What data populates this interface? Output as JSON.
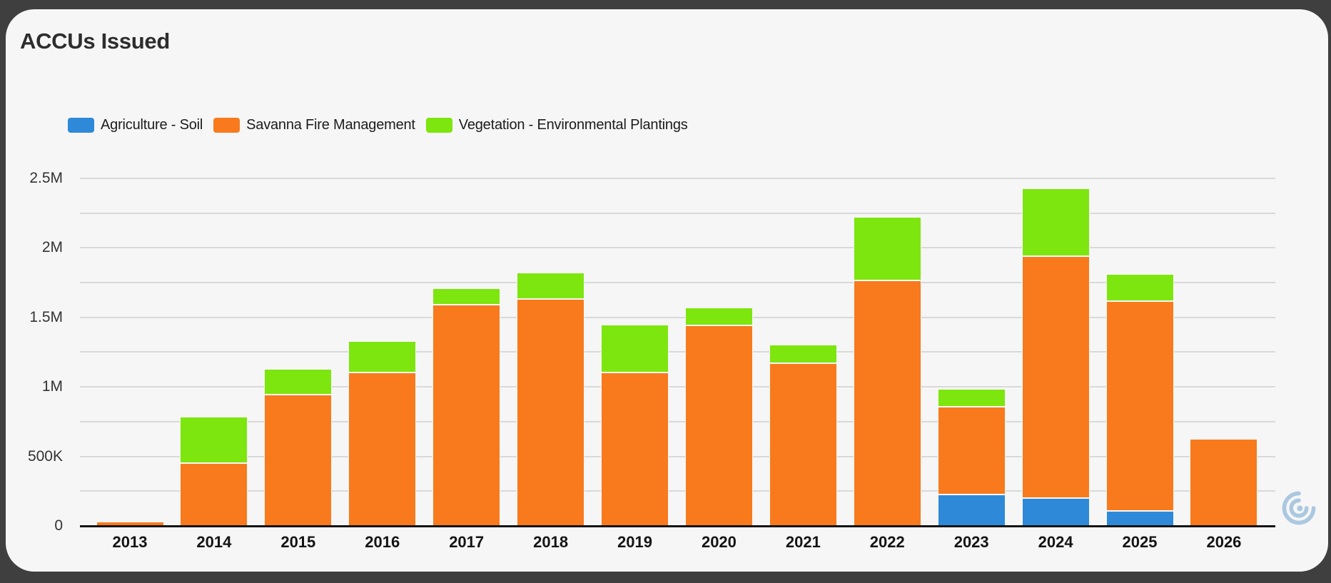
{
  "header": {
    "title": "ACCUs Issued"
  },
  "chart_data": {
    "type": "bar",
    "stacked": true,
    "title": "ACCUs Issued",
    "legend_position": "top",
    "grid": true,
    "categories": [
      "2013",
      "2014",
      "2015",
      "2016",
      "2017",
      "2018",
      "2019",
      "2020",
      "2021",
      "2022",
      "2023",
      "2024",
      "2025",
      "2026"
    ],
    "series": [
      {
        "name": "Agriculture - Soil",
        "color": "#2e89d8",
        "values": [
          0,
          0,
          0,
          0,
          0,
          0,
          0,
          0,
          0,
          0,
          225000,
          200000,
          110000,
          0
        ]
      },
      {
        "name": "Savanna Fire Management",
        "color": "#f87a1c",
        "values": [
          30000,
          450000,
          945000,
          1105000,
          1590000,
          1630000,
          1105000,
          1440000,
          1170000,
          1765000,
          630000,
          1740000,
          1505000,
          625000
        ]
      },
      {
        "name": "Vegetation - Environmental Plantings",
        "color": "#7de60e",
        "values": [
          0,
          335000,
          185000,
          225000,
          120000,
          190000,
          340000,
          130000,
          135000,
          455000,
          130000,
          485000,
          195000,
          0
        ]
      }
    ],
    "xlabel": "",
    "ylabel": "",
    "ylim": [
      0,
      2500000
    ],
    "y_ticks": [
      {
        "value": 0,
        "label": "0"
      },
      {
        "value": 500000,
        "label": "500K"
      },
      {
        "value": 1000000,
        "label": "1M"
      },
      {
        "value": 1500000,
        "label": "1.5M"
      },
      {
        "value": 2000000,
        "label": "2M"
      },
      {
        "value": 2500000,
        "label": "2.5M"
      }
    ],
    "minor_grid_step": 250000
  }
}
